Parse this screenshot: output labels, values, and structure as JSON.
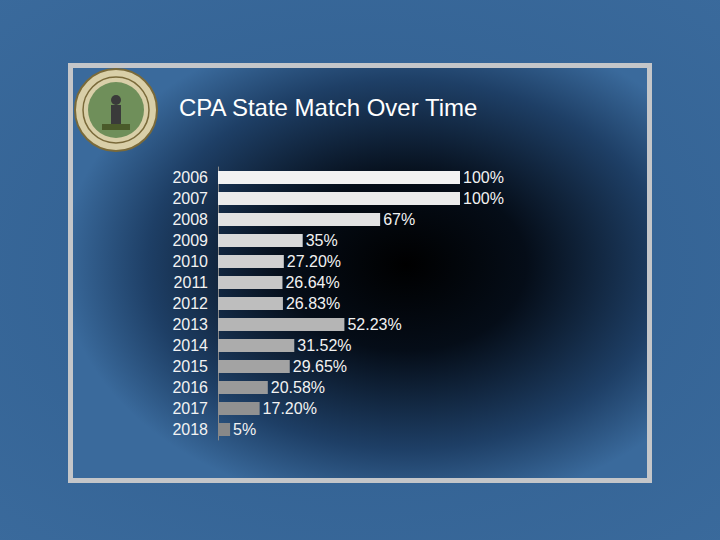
{
  "chart_data": {
    "type": "bar",
    "title": "CPA State Match Over Time",
    "orientation": "horizontal",
    "categories": [
      "2006",
      "2007",
      "2008",
      "2009",
      "2010",
      "2011",
      "2012",
      "2013",
      "2014",
      "2015",
      "2016",
      "2017",
      "2018"
    ],
    "values": [
      100,
      100,
      67,
      35,
      27.2,
      26.64,
      26.83,
      52.23,
      31.52,
      29.65,
      20.58,
      17.2,
      5
    ],
    "value_labels": [
      "100%",
      "100%",
      "67%",
      "35%",
      "27.20%",
      "26.64%",
      "26.83%",
      "52.23%",
      "31.52%",
      "29.65%",
      "20.58%",
      "17.20%",
      "5%"
    ],
    "colors": [
      "#f2f2f2",
      "#ebebeb",
      "#e2e2e2",
      "#d9d9d9",
      "#d0d0d0",
      "#c7c7c7",
      "#bebebe",
      "#b5b5b5",
      "#acacac",
      "#a3a3a3",
      "#9a9a9a",
      "#919191",
      "#888888"
    ],
    "xlim": [
      0,
      100
    ],
    "data_labels": true,
    "tick_labels": "y",
    "grid": false
  }
}
